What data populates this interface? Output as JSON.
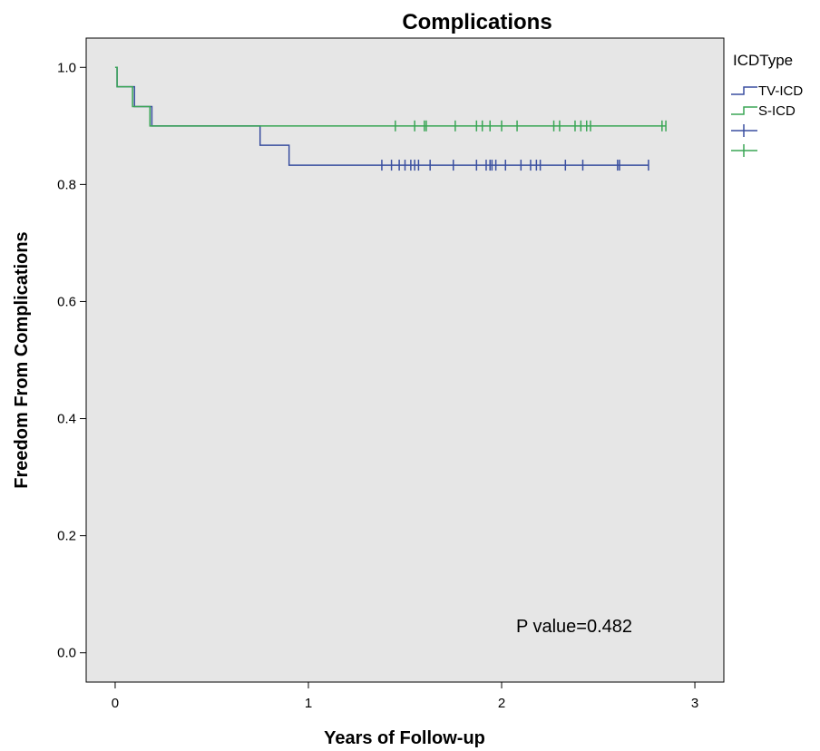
{
  "chart_data": {
    "type": "line",
    "subtype": "kaplan-meier survival curve",
    "title": "Complications",
    "xlabel": "Years of Follow-up",
    "ylabel": "Freedom From Complications",
    "xlim": [
      -0.15,
      3.15
    ],
    "ylim": [
      -0.05,
      1.05
    ],
    "xticks": [
      0,
      1,
      2,
      3
    ],
    "xtick_labels": [
      "0",
      "1",
      "2",
      "3"
    ],
    "yticks": [
      0.0,
      0.2,
      0.4,
      0.6,
      0.8,
      1.0
    ],
    "ytick_labels": [
      "0.0",
      "0.2",
      "0.4",
      "0.6",
      "0.8",
      "1.0"
    ],
    "grid": false,
    "background_color": "#e6e6e6",
    "legend": {
      "title": "ICDType",
      "placement": "right-outside-top",
      "entries": [
        {
          "label": "TV-ICD",
          "symbol": "step",
          "color": "#3a4fa0"
        },
        {
          "label": "S-ICD",
          "symbol": "step",
          "color": "#3aa655"
        },
        {
          "label": "",
          "symbol": "censor",
          "color": "#3a4fa0"
        },
        {
          "label": "",
          "symbol": "censor",
          "color": "#3aa655"
        }
      ]
    },
    "annotation": "P value=0.482",
    "series": [
      {
        "name": "TV-ICD",
        "color": "#3a4fa0",
        "steps": [
          [
            0,
            1.0
          ],
          [
            0.01,
            0.967
          ],
          [
            0.1,
            0.933
          ],
          [
            0.19,
            0.9
          ],
          [
            0.75,
            0.867
          ],
          [
            0.9,
            0.833
          ],
          [
            2.76,
            0.833
          ]
        ],
        "censored_x": [
          1.38,
          1.43,
          1.47,
          1.5,
          1.53,
          1.55,
          1.57,
          1.63,
          1.75,
          1.87,
          1.92,
          1.94,
          1.95,
          1.97,
          2.02,
          2.1,
          2.15,
          2.18,
          2.2,
          2.33,
          2.42,
          2.6,
          2.61,
          2.76
        ],
        "censored_y": 0.833
      },
      {
        "name": "S-ICD",
        "color": "#3aa655",
        "steps": [
          [
            0,
            1.0
          ],
          [
            0.01,
            0.967
          ],
          [
            0.09,
            0.933
          ],
          [
            0.18,
            0.9
          ],
          [
            2.85,
            0.9
          ]
        ],
        "censored_x": [
          1.45,
          1.55,
          1.6,
          1.61,
          1.76,
          1.87,
          1.9,
          1.94,
          2.0,
          2.08,
          2.27,
          2.3,
          2.38,
          2.41,
          2.44,
          2.46,
          2.83,
          2.85
        ],
        "censored_y": 0.9
      }
    ]
  }
}
